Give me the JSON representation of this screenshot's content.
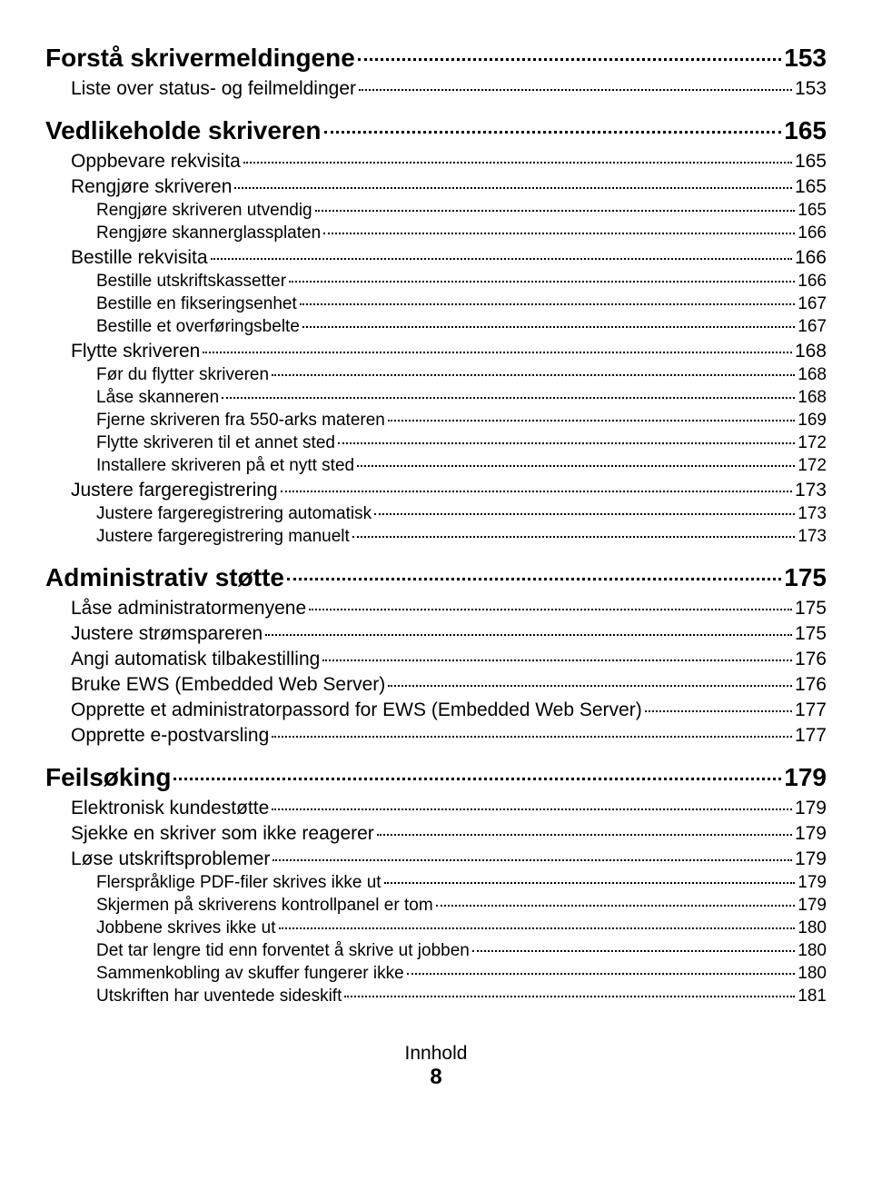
{
  "footer_label": "Innhold",
  "footer_page": "8",
  "entries": [
    {
      "level": 1,
      "title": "Forstå skrivermeldingene",
      "page": "153"
    },
    {
      "level": 2,
      "title": "Liste over status- og feilmeldinger",
      "page": "153"
    },
    {
      "level": 1,
      "title": "Vedlikeholde skriveren",
      "page": "165"
    },
    {
      "level": 2,
      "title": "Oppbevare rekvisita",
      "page": "165"
    },
    {
      "level": 2,
      "title": "Rengjøre skriveren",
      "page": "165"
    },
    {
      "level": 3,
      "title": "Rengjøre skriveren utvendig",
      "page": "165"
    },
    {
      "level": 3,
      "title": "Rengjøre skannerglassplaten",
      "page": "166"
    },
    {
      "level": 2,
      "title": "Bestille rekvisita",
      "page": "166"
    },
    {
      "level": 3,
      "title": "Bestille utskriftskassetter",
      "page": "166"
    },
    {
      "level": 3,
      "title": "Bestille en fikseringsenhet",
      "page": "167"
    },
    {
      "level": 3,
      "title": "Bestille et overføringsbelte",
      "page": "167"
    },
    {
      "level": 2,
      "title": "Flytte skriveren",
      "page": "168"
    },
    {
      "level": 3,
      "title": "Før du flytter skriveren",
      "page": "168"
    },
    {
      "level": 3,
      "title": "Låse skanneren",
      "page": "168"
    },
    {
      "level": 3,
      "title": "Fjerne skriveren fra 550-arks materen",
      "page": "169"
    },
    {
      "level": 3,
      "title": "Flytte skriveren til et annet sted",
      "page": "172"
    },
    {
      "level": 3,
      "title": "Installere skriveren på et nytt sted",
      "page": "172"
    },
    {
      "level": 2,
      "title": "Justere fargeregistrering",
      "page": "173"
    },
    {
      "level": 3,
      "title": "Justere fargeregistrering automatisk",
      "page": "173"
    },
    {
      "level": 3,
      "title": "Justere fargeregistrering manuelt",
      "page": "173"
    },
    {
      "level": 1,
      "title": "Administrativ støtte",
      "page": "175"
    },
    {
      "level": 2,
      "title": "Låse administratormenyene",
      "page": "175"
    },
    {
      "level": 2,
      "title": "Justere strømspareren",
      "page": "175"
    },
    {
      "level": 2,
      "title": "Angi automatisk tilbakestilling",
      "page": "176"
    },
    {
      "level": 2,
      "title": "Bruke EWS (Embedded Web Server)",
      "page": "176"
    },
    {
      "level": 2,
      "title": "Opprette et administratorpassord for EWS (Embedded Web Server)",
      "page": "177"
    },
    {
      "level": 2,
      "title": "Opprette e-postvarsling",
      "page": "177"
    },
    {
      "level": 1,
      "title": "Feilsøking",
      "page": "179"
    },
    {
      "level": 2,
      "title": "Elektronisk kundestøtte",
      "page": "179"
    },
    {
      "level": 2,
      "title": "Sjekke en skriver som ikke reagerer",
      "page": "179"
    },
    {
      "level": 2,
      "title": "Løse utskriftsproblemer",
      "page": "179"
    },
    {
      "level": 3,
      "title": "Flerspråklige PDF-filer skrives ikke ut",
      "page": "179"
    },
    {
      "level": 3,
      "title": "Skjermen på skriverens kontrollpanel er tom",
      "page": "179"
    },
    {
      "level": 3,
      "title": "Jobbene skrives ikke ut",
      "page": "180"
    },
    {
      "level": 3,
      "title": "Det tar lengre tid enn forventet å skrive ut jobben",
      "page": "180"
    },
    {
      "level": 3,
      "title": "Sammenkobling av skuffer fungerer ikke",
      "page": "180"
    },
    {
      "level": 3,
      "title": "Utskriften har uventede sideskift",
      "page": "181"
    }
  ]
}
